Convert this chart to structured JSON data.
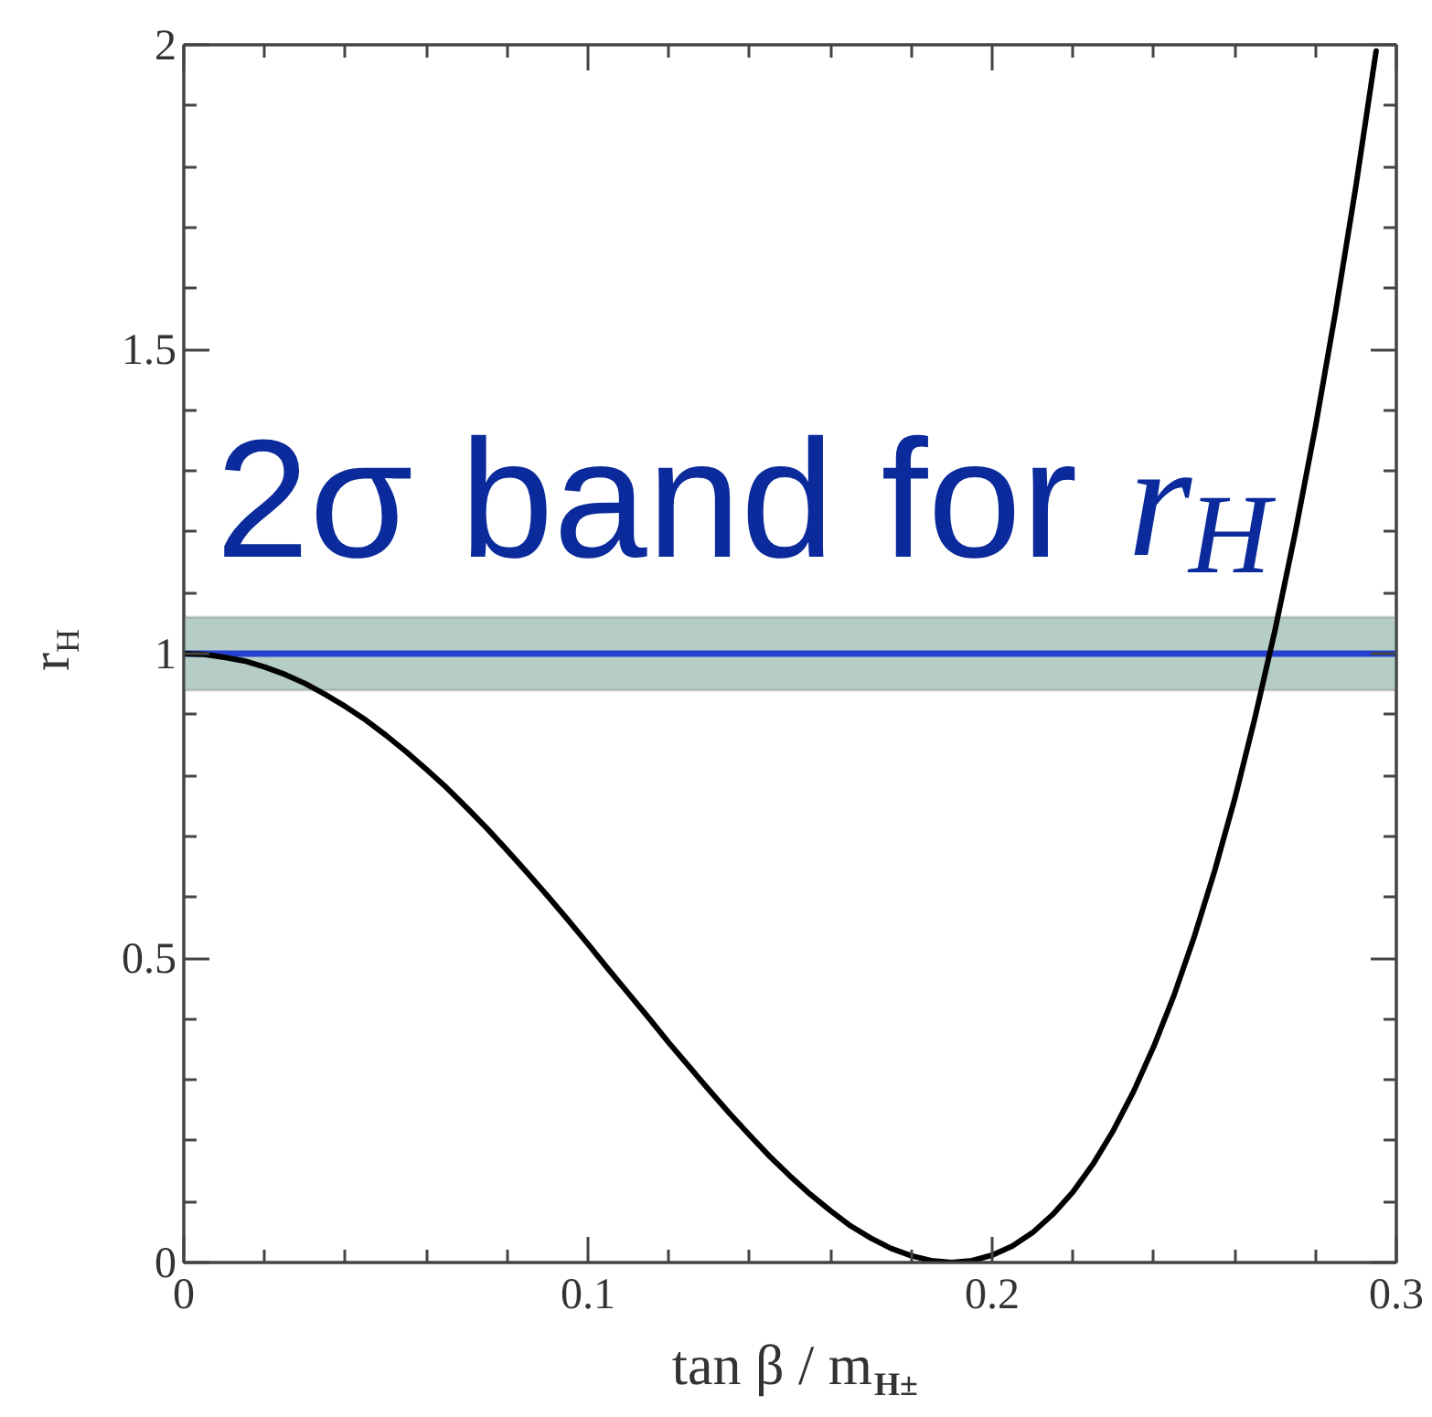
{
  "chart_data": {
    "type": "line",
    "xlabel": "tan β / m$_{H±}$",
    "ylabel": "r$_{H}$",
    "x": [
      0,
      0.005,
      0.01,
      0.015,
      0.02,
      0.025,
      0.03,
      0.035,
      0.04,
      0.045,
      0.05,
      0.055,
      0.06,
      0.065,
      0.07,
      0.075,
      0.08,
      0.085,
      0.09,
      0.095,
      0.1,
      0.105,
      0.11,
      0.115,
      0.12,
      0.125,
      0.13,
      0.135,
      0.14,
      0.145,
      0.15,
      0.155,
      0.16,
      0.165,
      0.17,
      0.175,
      0.18,
      0.185,
      0.19,
      0.195,
      0.2,
      0.205,
      0.21,
      0.215,
      0.22,
      0.225,
      0.23,
      0.235,
      0.24,
      0.245,
      0.25,
      0.255,
      0.26,
      0.265,
      0.27,
      0.275,
      0.28,
      0.285,
      0.29,
      0.295
    ],
    "series": [
      {
        "color": "#000000",
        "values": [
          1,
          0.999,
          0.994,
          0.988,
          0.978,
          0.966,
          0.951,
          0.933,
          0.913,
          0.891,
          0.866,
          0.839,
          0.81,
          0.78,
          0.747,
          0.713,
          0.677,
          0.64,
          0.602,
          0.563,
          0.523,
          0.482,
          0.442,
          0.402,
          0.361,
          0.322,
          0.283,
          0.245,
          0.209,
          0.174,
          0.142,
          0.112,
          0.085,
          0.06,
          0.04,
          0.023,
          0.011,
          0.003,
          0,
          0.003,
          0.012,
          0.027,
          0.049,
          0.079,
          0.116,
          0.162,
          0.217,
          0.281,
          0.355,
          0.439,
          0.535,
          0.642,
          0.761,
          0.894,
          1.039,
          1.199,
          1.373,
          1.563,
          1.768,
          1.99
        ]
      }
    ],
    "xlim": [
      0,
      0.3
    ],
    "ylim": [
      0,
      2
    ],
    "xticks": [
      0,
      {
        "value": 0.02,
        "label": null
      },
      {
        "value": 0.04,
        "label": null
      },
      {
        "value": 0.06,
        "label": null
      },
      {
        "value": 0.08,
        "label": null
      },
      0.1,
      {
        "value": 0.12,
        "label": null
      },
      {
        "value": 0.14,
        "label": null
      },
      {
        "value": 0.16,
        "label": null
      },
      {
        "value": 0.18,
        "label": null
      },
      0.2,
      {
        "value": 0.22,
        "label": null
      },
      {
        "value": 0.24,
        "label": null
      },
      {
        "value": 0.26,
        "label": null
      },
      {
        "value": 0.28,
        "label": null
      },
      0.3
    ],
    "yticks": [
      0,
      {
        "value": 0.1,
        "label": null
      },
      {
        "value": 0.2,
        "label": null
      },
      {
        "value": 0.3,
        "label": null
      },
      {
        "value": 0.4,
        "label": null
      },
      0.5,
      {
        "value": 0.6,
        "label": null
      },
      {
        "value": 0.7,
        "label": null
      },
      {
        "value": 0.8,
        "label": null
      },
      {
        "value": 0.9,
        "label": null
      },
      1,
      {
        "value": 1.1,
        "label": null
      },
      {
        "value": 1.2,
        "label": null
      },
      {
        "value": 1.3,
        "label": null
      },
      {
        "value": 1.4,
        "label": null
      },
      1.5,
      {
        "value": 1.6,
        "label": null
      },
      {
        "value": 1.7,
        "label": null
      },
      {
        "value": 1.8,
        "label": null
      },
      {
        "value": 1.9,
        "label": null
      },
      2
    ],
    "ref_lines": [
      {
        "axis": "y",
        "value": 1,
        "color": "#2540d0"
      }
    ],
    "bands": [
      {
        "axis": "y",
        "from": 0.94,
        "to": 1.06,
        "label": "2σ band for r$_{H}$",
        "color": "#b5cdc6"
      }
    ],
    "marker": "none",
    "line_style": "solid",
    "grid": false
  }
}
